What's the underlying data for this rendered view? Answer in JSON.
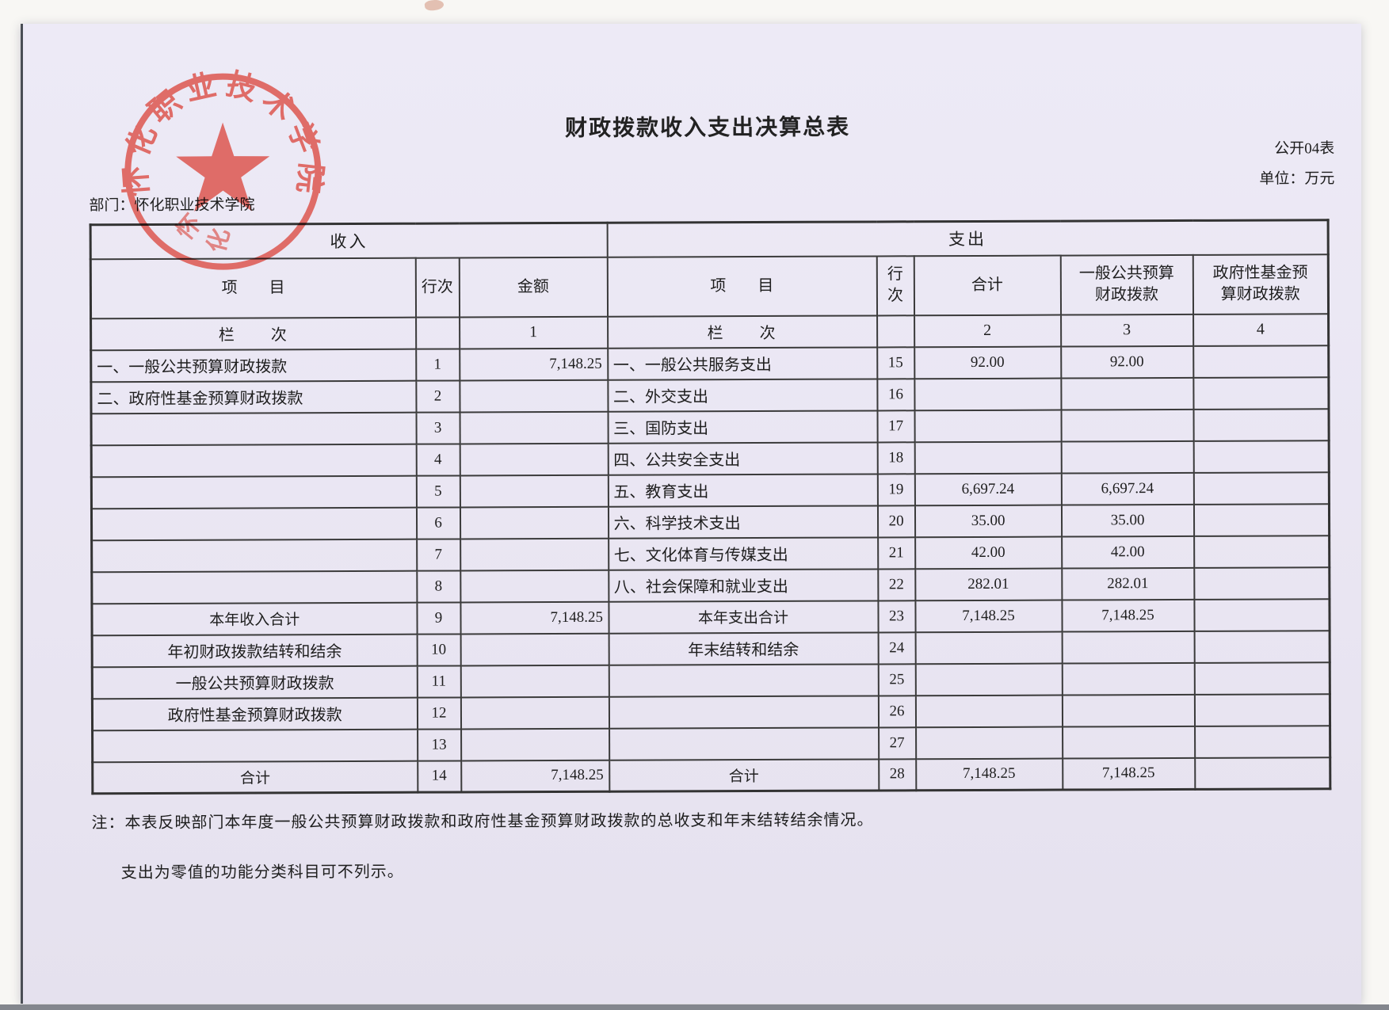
{
  "page": {
    "title": "财政拨款收入支出决算总表",
    "form_code": "公开04表",
    "unit_label": "单位：万元",
    "department_label": "部门：怀化职业技术学院"
  },
  "seal": {
    "arc_text": "怀化职业技术学院",
    "squiggle_chars": [
      "怀",
      "化"
    ],
    "color": "#dd5a54"
  },
  "table": {
    "income_header": "收入",
    "expense_header": "支出",
    "columns": {
      "income": [
        "项　　目",
        "行次",
        "金额"
      ],
      "expense": [
        "项　　目",
        "行次",
        "合计",
        "一般公共预算\n财政拨款",
        "政府性基金预\n算财政拨款"
      ]
    },
    "lane_row": {
      "income_label": "栏　　次",
      "income_col": "1",
      "expense_label": "栏　　次",
      "expense_cols": [
        "2",
        "3",
        "4"
      ]
    },
    "rows": [
      {
        "in": [
          "一、一般公共预算财政拨款",
          "1",
          "7,148.25"
        ],
        "out": [
          "一、一般公共服务支出",
          "15",
          "92.00",
          "92.00",
          ""
        ]
      },
      {
        "in": [
          "二、政府性基金预算财政拨款",
          "2",
          ""
        ],
        "out": [
          "二、外交支出",
          "16",
          "",
          "",
          ""
        ]
      },
      {
        "in": [
          "",
          "3",
          ""
        ],
        "out": [
          "三、国防支出",
          "17",
          "",
          "",
          ""
        ]
      },
      {
        "in": [
          "",
          "4",
          ""
        ],
        "out": [
          "四、公共安全支出",
          "18",
          "",
          "",
          ""
        ]
      },
      {
        "in": [
          "",
          "5",
          ""
        ],
        "out": [
          "五、教育支出",
          "19",
          "6,697.24",
          "6,697.24",
          ""
        ]
      },
      {
        "in": [
          "",
          "6",
          ""
        ],
        "out": [
          "六、科学技术支出",
          "20",
          "35.00",
          "35.00",
          ""
        ]
      },
      {
        "in": [
          "",
          "7",
          ""
        ],
        "out": [
          "七、文化体育与传媒支出",
          "21",
          "42.00",
          "42.00",
          ""
        ]
      },
      {
        "in": [
          "",
          "8",
          ""
        ],
        "out": [
          "八、社会保障和就业支出",
          "22",
          "282.01",
          "282.01",
          ""
        ]
      },
      {
        "in": [
          "本年收入合计",
          "9",
          "7,148.25"
        ],
        "in_style": "total",
        "out": [
          "本年支出合计",
          "23",
          "7,148.25",
          "7,148.25",
          ""
        ],
        "out_style": "total"
      },
      {
        "in": [
          "年初财政拨款结转和结余",
          "10",
          ""
        ],
        "in_style": "center",
        "out": [
          "年末结转和结余",
          "24",
          "",
          "",
          ""
        ],
        "out_style": "center"
      },
      {
        "in": [
          "一般公共预算财政拨款",
          "11",
          ""
        ],
        "in_style": "center",
        "out": [
          "",
          "25",
          "",
          "",
          ""
        ]
      },
      {
        "in": [
          "政府性基金预算财政拨款",
          "12",
          ""
        ],
        "in_style": "center",
        "out": [
          "",
          "26",
          "",
          "",
          ""
        ]
      },
      {
        "in": [
          "",
          "13",
          ""
        ],
        "out": [
          "",
          "27",
          "",
          "",
          ""
        ]
      },
      {
        "in": [
          "合计",
          "14",
          "7,148.25"
        ],
        "in_style": "total",
        "out": [
          "合计",
          "28",
          "7,148.25",
          "7,148.25",
          ""
        ],
        "out_style": "total"
      }
    ]
  },
  "notes": [
    "注：本表反映部门本年度一般公共预算财政拨款和政府性基金预算财政拨款的总收支和年末结转结余情况。",
    "支出为零值的功能分类科目可不列示。"
  ],
  "colors": {
    "paper": "#eae6f2",
    "seal_red": "#dd5a54",
    "table_line": "#3b3b3b"
  }
}
